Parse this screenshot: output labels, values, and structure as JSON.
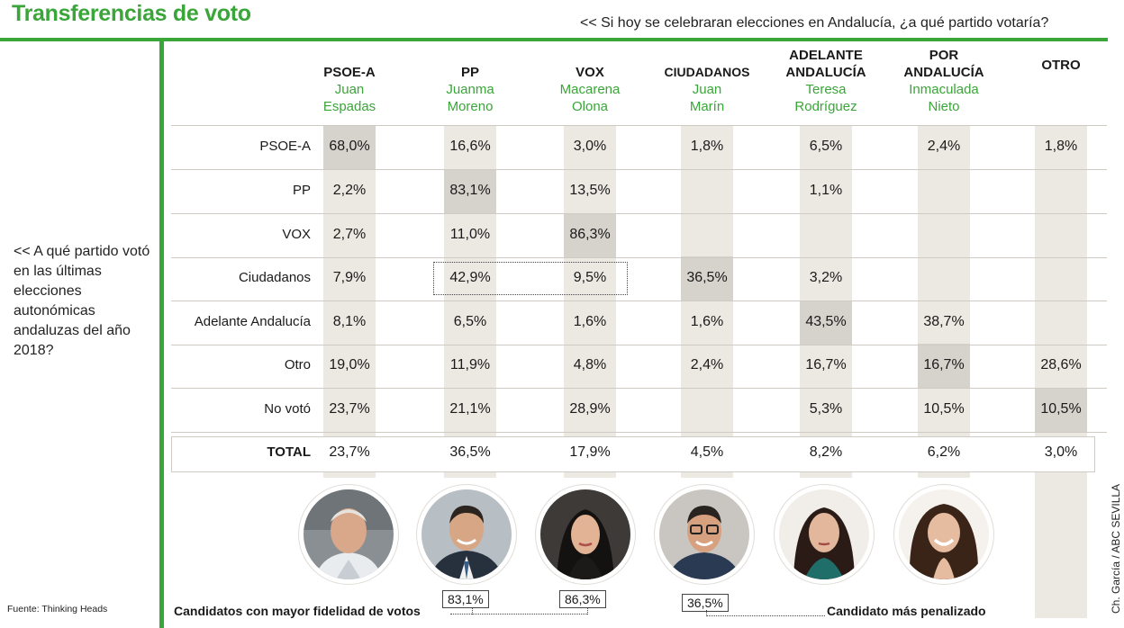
{
  "title": "Transferencias de voto",
  "question": "<< Si hoy se celebraran elecciones en Andalucía, ¿a qué partido votaría?",
  "row_question": "<< A qué partido votó en las últimas elecciones autonómicas andaluzas del año 2018?",
  "source": "Fuente: Thinking Heads",
  "credit": "Ch. García / ABC SEVILLA",
  "bottom": {
    "left_label": "Candidatos con mayor fidelidad de votos",
    "right_label": "Candidato más penalizado",
    "badge_pp": "83,1%",
    "badge_vox": "86,3%",
    "badge_cs": "36,5%"
  },
  "chart_data": {
    "type": "table",
    "columns": [
      {
        "party": "PSOE-A",
        "candidate": "Juan Espadas"
      },
      {
        "party": "PP",
        "candidate": "Juanma Moreno"
      },
      {
        "party": "VOX",
        "candidate": "Macarena Olona"
      },
      {
        "party": "CIUDADANOS",
        "candidate": "Juan Marín"
      },
      {
        "party": "ADELANTE ANDALUCÍA",
        "candidate": "Teresa Rodríguez"
      },
      {
        "party": "POR ANDALUCÍA",
        "candidate": "Inmaculada Nieto"
      },
      {
        "party": "OTRO",
        "candidate": ""
      }
    ],
    "rows": [
      {
        "label": "PSOE-A",
        "values": [
          "68,0%",
          "16,6%",
          "3,0%",
          "1,8%",
          "6,5%",
          "2,4%",
          "1,8%"
        ]
      },
      {
        "label": "PP",
        "values": [
          "2,2%",
          "83,1%",
          "13,5%",
          "",
          "1,1%",
          "",
          ""
        ]
      },
      {
        "label": "VOX",
        "values": [
          "2,7%",
          "11,0%",
          "86,3%",
          "",
          "",
          "",
          ""
        ]
      },
      {
        "label": "Ciudadanos",
        "values": [
          "7,9%",
          "42,9%",
          "9,5%",
          "36,5%",
          "3,2%",
          "",
          ""
        ]
      },
      {
        "label": "Adelante Andalucía",
        "values": [
          "8,1%",
          "6,5%",
          "1,6%",
          "1,6%",
          "43,5%",
          "38,7%",
          ""
        ]
      },
      {
        "label": "Otro",
        "values": [
          "19,0%",
          "11,9%",
          "4,8%",
          "2,4%",
          "16,7%",
          "16,7%",
          "28,6%"
        ]
      },
      {
        "label": "No votó",
        "values": [
          "23,7%",
          "21,1%",
          "28,9%",
          "",
          "5,3%",
          "10,5%",
          "10,5%"
        ]
      }
    ],
    "total": {
      "label": "TOTAL",
      "values": [
        "23,7%",
        "36,5%",
        "17,9%",
        "4,5%",
        "8,2%",
        "6,2%",
        "3,0%"
      ]
    },
    "highlighted_cells": [
      [
        0,
        0
      ],
      [
        1,
        1
      ],
      [
        2,
        2
      ],
      [
        3,
        3
      ],
      [
        4,
        4
      ],
      [
        5,
        5
      ],
      [
        6,
        6
      ]
    ],
    "colors": {
      "accent": "#3aa538",
      "band": "#ece8e2",
      "highlight": "#d6d2cc"
    }
  }
}
